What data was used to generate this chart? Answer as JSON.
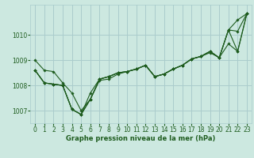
{
  "title": "Graphe pression niveau de la mer (hPa)",
  "background_color": "#cce8e0",
  "grid_color": "#aacccc",
  "line_color": "#1e5c1e",
  "marker_color": "#1e5c1e",
  "xlim": [
    -0.5,
    23.5
  ],
  "ylim": [
    1006.5,
    1011.2
  ],
  "yticks": [
    1007,
    1008,
    1009,
    1010
  ],
  "xticks": [
    0,
    1,
    2,
    3,
    4,
    5,
    6,
    7,
    8,
    9,
    10,
    11,
    12,
    13,
    14,
    15,
    16,
    17,
    18,
    19,
    20,
    21,
    22,
    23
  ],
  "series": [
    [
      1009.0,
      1008.6,
      null,
      1008.1,
      1007.7,
      1007.0,
      null,
      null,
      1008.25,
      1008.45,
      null,
      null,
      null,
      null,
      null,
      null,
      null,
      null,
      null,
      null,
      null,
      null,
      1010.15,
      1010.85
    ],
    [
      null,
      1008.1,
      null,
      null,
      1007.05,
      1006.85,
      null,
      1008.25,
      1008.35,
      1008.5,
      1008.55,
      1008.65,
      1008.8,
      null,
      1008.45,
      1008.65,
      1008.8,
      1009.05,
      1009.15,
      1009.3,
      1009.1,
      1010.2,
      null,
      null
    ],
    [
      null,
      null,
      null,
      null,
      null,
      null,
      null,
      null,
      null,
      null,
      1008.55,
      1008.65,
      1008.8,
      1008.35,
      1008.45,
      1008.65,
      1008.8,
      1009.05,
      1009.15,
      1009.35,
      1009.1,
      null,
      1009.35,
      1010.85
    ],
    [
      null,
      null,
      null,
      null,
      null,
      null,
      null,
      null,
      null,
      null,
      1008.55,
      1008.65,
      1008.8,
      1008.35,
      1008.45,
      1008.65,
      1008.8,
      1009.05,
      1009.15,
      1009.35,
      1009.1,
      1009.65,
      null,
      null
    ]
  ],
  "series_full": [
    [
      1009.0,
      1008.6,
      1008.55,
      1008.1,
      1007.7,
      1007.0,
      1007.45,
      1008.2,
      1008.25,
      1008.45,
      1008.55,
      1008.65,
      1008.8,
      1008.35,
      1008.45,
      1008.65,
      1008.8,
      1009.05,
      1009.15,
      1009.35,
      1009.1,
      1010.2,
      1010.15,
      1010.85
    ],
    [
      1008.6,
      1008.1,
      1008.05,
      1008.0,
      1007.05,
      1006.85,
      1007.7,
      1008.25,
      1008.35,
      1008.5,
      1008.55,
      1008.65,
      1008.8,
      1008.35,
      1008.45,
      1008.65,
      1008.8,
      1009.05,
      1009.15,
      1009.3,
      1009.1,
      1010.2,
      1010.6,
      1010.85
    ],
    [
      1008.6,
      1008.1,
      1008.05,
      1008.0,
      1007.05,
      1006.85,
      1007.45,
      1008.25,
      1008.35,
      1008.5,
      1008.55,
      1008.65,
      1008.8,
      1008.35,
      1008.45,
      1008.65,
      1008.8,
      1009.05,
      1009.15,
      1009.35,
      1009.1,
      1010.2,
      1009.35,
      1010.85
    ],
    [
      1008.6,
      1008.1,
      1008.05,
      1008.0,
      1007.05,
      1006.85,
      1007.45,
      1008.25,
      1008.35,
      1008.5,
      1008.55,
      1008.65,
      1008.8,
      1008.35,
      1008.45,
      1008.65,
      1008.8,
      1009.05,
      1009.15,
      1009.35,
      1009.1,
      1009.65,
      1009.35,
      1010.85
    ]
  ]
}
